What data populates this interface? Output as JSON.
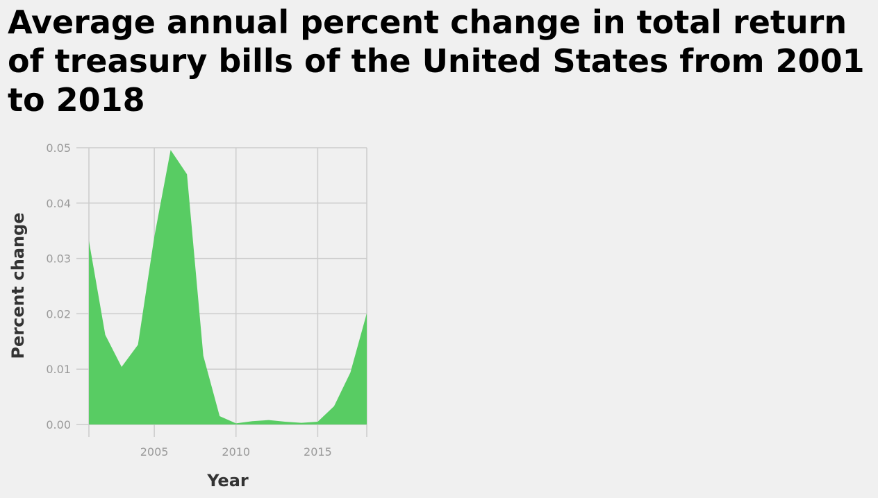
{
  "chart_data": {
    "type": "area",
    "title": "Average annual percent change in total return of treasury bills of the United States from 2001 to 2018",
    "xlabel": "Year",
    "ylabel": "Percent change",
    "x": [
      2001,
      2002,
      2003,
      2004,
      2005,
      2006,
      2007,
      2008,
      2009,
      2010,
      2011,
      2012,
      2013,
      2014,
      2015,
      2016,
      2017,
      2018
    ],
    "values": [
      0.0332,
      0.0162,
      0.0104,
      0.0144,
      0.0339,
      0.0496,
      0.0452,
      0.0124,
      0.0015,
      0.0002,
      0.0006,
      0.0008,
      0.0005,
      0.0003,
      0.0005,
      0.0033,
      0.0094,
      0.0201
    ],
    "xlim": [
      2001,
      2018
    ],
    "ylim": [
      0,
      0.05
    ],
    "x_ticks": [
      2005,
      2010,
      2015
    ],
    "x_tick_labels": [
      "2005",
      "2010",
      "2015"
    ],
    "y_ticks": [
      0,
      0.01,
      0.02,
      0.03,
      0.04,
      0.05
    ],
    "y_tick_labels": [
      "0.00",
      "0.01",
      "0.02",
      "0.03",
      "0.04",
      "0.05"
    ],
    "grid": true,
    "fill_color": "#58cc63",
    "grid_color": "#cccccc",
    "background_color": "#f0f0f0"
  }
}
